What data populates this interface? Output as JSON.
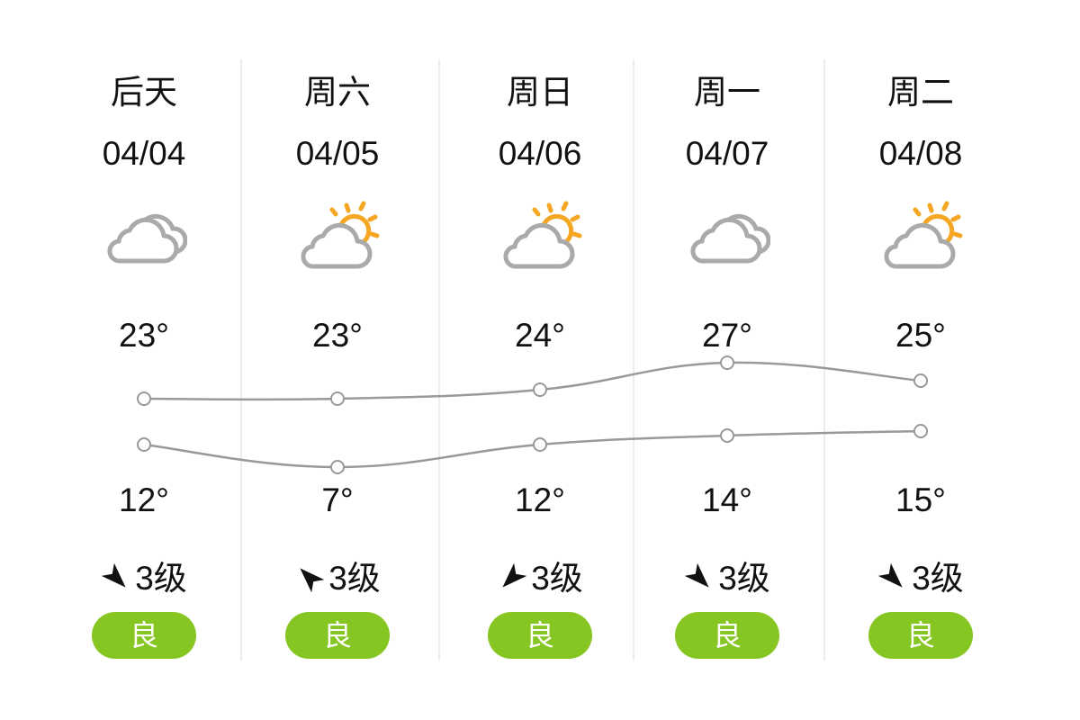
{
  "colors": {
    "aqi_badge": "#86c623",
    "line": "#999999",
    "sun": "#f5a623",
    "cloud": "#aaaaaa"
  },
  "days": [
    {
      "day": "后天",
      "date": "04/04",
      "weather_icon": "cloudy-icon",
      "high": "23°",
      "low": "12°",
      "high_value": 23,
      "low_value": 12,
      "wind_dir": "southeast",
      "wind": "3级",
      "aqi": "良"
    },
    {
      "day": "周六",
      "date": "04/05",
      "weather_icon": "partly-cloudy-icon",
      "high": "23°",
      "low": "7°",
      "high_value": 23,
      "low_value": 7,
      "wind_dir": "northwest",
      "wind": "3级",
      "aqi": "良"
    },
    {
      "day": "周日",
      "date": "04/06",
      "weather_icon": "partly-cloudy-icon",
      "high": "24°",
      "low": "12°",
      "high_value": 24,
      "low_value": 12,
      "wind_dir": "southwest",
      "wind": "3级",
      "aqi": "良"
    },
    {
      "day": "周一",
      "date": "04/07",
      "weather_icon": "cloudy-icon",
      "high": "27°",
      "low": "14°",
      "high_value": 27,
      "low_value": 14,
      "wind_dir": "southeast",
      "wind": "3级",
      "aqi": "良"
    },
    {
      "day": "周二",
      "date": "04/08",
      "weather_icon": "partly-cloudy-icon",
      "high": "25°",
      "low": "15°",
      "high_value": 25,
      "low_value": 15,
      "wind_dir": "southeast",
      "wind": "3级",
      "aqi": "良"
    }
  ]
}
